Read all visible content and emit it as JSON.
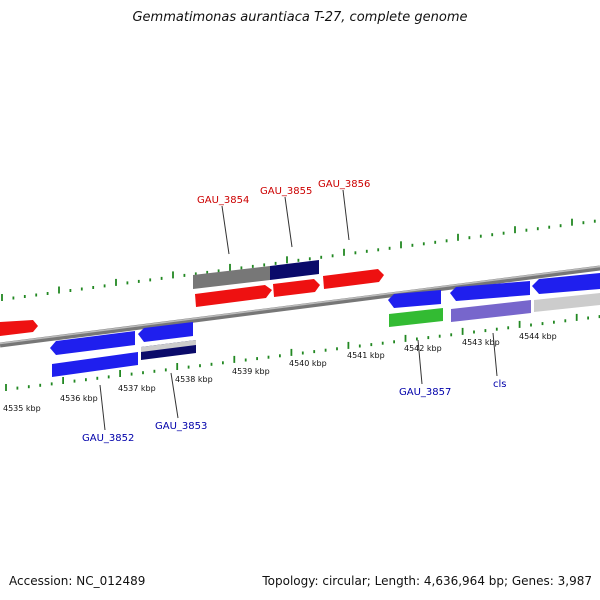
{
  "header": {
    "title": "Gemmatimonas aurantiaca T-27, complete genome"
  },
  "footer": {
    "accession": "Accession: NC_012489",
    "topology": "Topology: circular; Length: 4,636,964 bp; Genes: 3,987"
  },
  "colors": {
    "forward_gene": "#ee1111",
    "reverse_gene": "#1f1fee",
    "forward_label": "#cc0000",
    "reverse_label": "#0000aa",
    "ruler": "#228822",
    "backbone": "#888888",
    "rna": "#33bb33",
    "pseudo_gray": "#999999",
    "dark_navy": "#0a0a6a",
    "purple": "#7766cc",
    "light_gray": "#cccccc"
  },
  "tick_labels": [
    "4535 kbp",
    "4536 kbp",
    "4537 kbp",
    "4538 kbp",
    "4539 kbp",
    "4540 kbp",
    "4541 kbp",
    "4542 kbp",
    "4543 kbp",
    "4544 kbp"
  ],
  "gene_labels": {
    "forward": [
      "GAU_3854",
      "GAU_3855",
      "GAU_3856"
    ],
    "reverse": [
      "GAU_3852",
      "GAU_3853",
      "GAU_3857",
      "cls"
    ]
  }
}
